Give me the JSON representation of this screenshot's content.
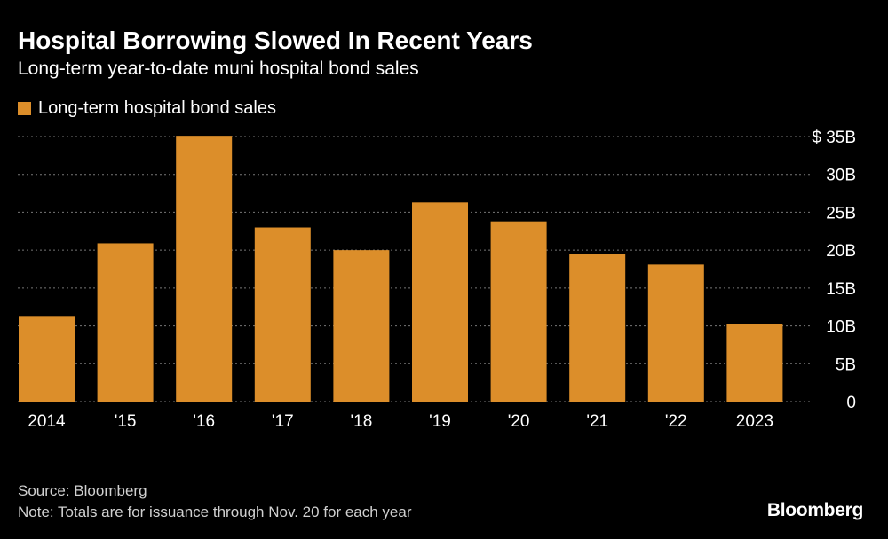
{
  "chart_data": {
    "type": "bar",
    "title": "Hospital Borrowing Slowed In Recent Years",
    "subtitle": "Long-term year-to-date muni hospital bond sales",
    "categories": [
      "2014",
      "'15",
      "'16",
      "'17",
      "'18",
      "'19",
      "'20",
      "'21",
      "'22",
      "2023"
    ],
    "series": [
      {
        "name": "Long-term hospital bond sales",
        "values": [
          11.2,
          20.9,
          35.1,
          23.0,
          20.0,
          26.3,
          23.8,
          19.5,
          18.1,
          10.3
        ]
      }
    ],
    "yticks": [
      0,
      5,
      10,
      15,
      20,
      25,
      30,
      35
    ],
    "ytick_labels": [
      "0",
      "5B",
      "10B",
      "15B",
      "20B",
      "25B",
      "30B",
      "$ 35B"
    ],
    "ylim": [
      0,
      35
    ],
    "xlabel": "",
    "ylabel": "",
    "grid": true,
    "legend_position": "top-left"
  },
  "colors": {
    "bar": "#dc8e2a",
    "grid": "#777777",
    "background": "#000000"
  },
  "footer": {
    "source": "Source: Bloomberg",
    "note": "Note: Totals are for issuance through Nov. 20 for each year",
    "brand": "Bloomberg"
  }
}
